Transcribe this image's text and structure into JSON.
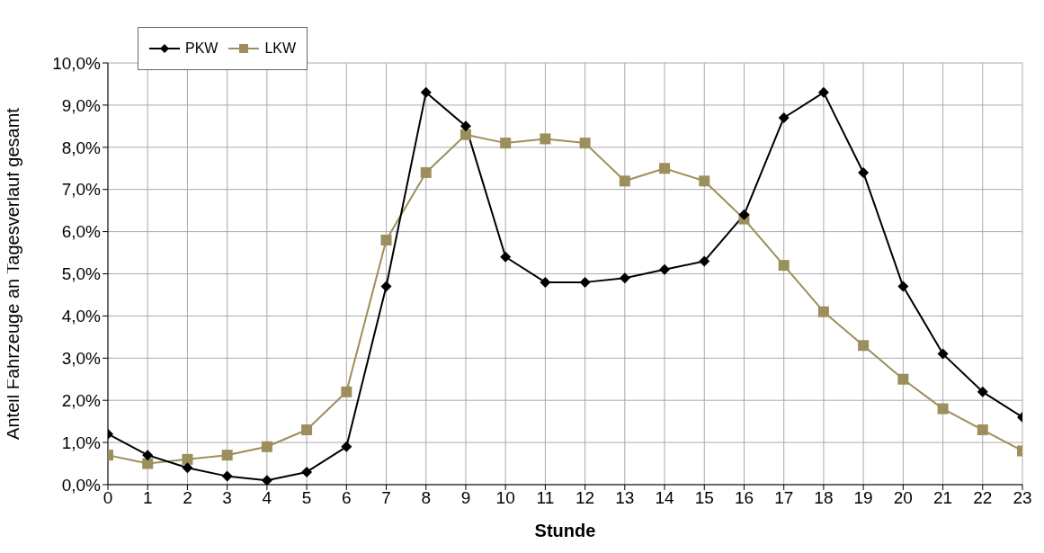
{
  "chart_data": {
    "type": "line",
    "xlabel": "Stunde",
    "ylabel": "Anteil Fahrzeuge an Tagesverlauf gesamt",
    "x": [
      0,
      1,
      2,
      3,
      4,
      5,
      6,
      7,
      8,
      9,
      10,
      11,
      12,
      13,
      14,
      15,
      16,
      17,
      18,
      19,
      20,
      21,
      22,
      23
    ],
    "series": [
      {
        "name": "PKW",
        "color": "#000000",
        "marker": "diamond",
        "values": [
          1.2,
          0.7,
          0.4,
          0.2,
          0.1,
          0.3,
          0.9,
          4.7,
          9.3,
          8.5,
          5.4,
          4.8,
          4.8,
          4.9,
          5.1,
          5.3,
          6.4,
          8.7,
          9.3,
          7.4,
          4.7,
          3.1,
          2.2,
          1.6
        ]
      },
      {
        "name": "LKW",
        "color": "#9c8f5c",
        "marker": "square",
        "values": [
          0.7,
          0.5,
          0.6,
          0.7,
          0.9,
          1.3,
          2.2,
          5.8,
          7.4,
          8.3,
          8.1,
          8.2,
          8.1,
          7.2,
          7.5,
          7.2,
          6.3,
          5.2,
          4.1,
          3.3,
          2.5,
          1.8,
          1.3,
          0.8
        ]
      }
    ],
    "xlim": [
      0,
      23
    ],
    "xticks": [
      0,
      1,
      2,
      3,
      4,
      5,
      6,
      7,
      8,
      9,
      10,
      11,
      12,
      13,
      14,
      15,
      16,
      17,
      18,
      19,
      20,
      21,
      22,
      23
    ],
    "ylim": [
      0,
      10
    ],
    "yticks": [
      {
        "value": 0,
        "label": "0,0%"
      },
      {
        "value": 1,
        "label": "1,0%"
      },
      {
        "value": 2,
        "label": "2,0%"
      },
      {
        "value": 3,
        "label": "3,0%"
      },
      {
        "value": 4,
        "label": "4,0%"
      },
      {
        "value": 5,
        "label": "5,0%"
      },
      {
        "value": 6,
        "label": "6,0%"
      },
      {
        "value": 7,
        "label": "7,0%"
      },
      {
        "value": 8,
        "label": "8,0%"
      },
      {
        "value": 9,
        "label": "9,0%"
      },
      {
        "value": 10,
        "label": "10,0%"
      }
    ],
    "grid": true,
    "legend": "top left",
    "line_style": "solid"
  }
}
